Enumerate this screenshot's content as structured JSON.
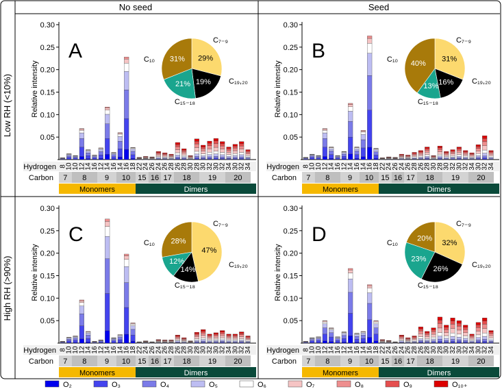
{
  "figure": {
    "col_headers": [
      "No seed",
      "Seed"
    ],
    "row_headers": [
      "Low RH (<10%)",
      "High RH (>90%)"
    ],
    "ylabel": "Relative intensity",
    "hydrogen_label": "Hydrogen",
    "carbon_label": "Carbon",
    "group_labels": [
      "Monomers",
      "Dimers"
    ],
    "legend": [
      "O₂",
      "O₃",
      "O₄",
      "O₅",
      "O₆",
      "O₇",
      "O₈",
      "O₉",
      "O₁₀₊"
    ],
    "legend_colors": [
      "#0000ee",
      "#4444ee",
      "#7b7be8",
      "#bdbdf2",
      "#ffffff",
      "#f6c4c4",
      "#ee8e8e",
      "#e54e4e",
      "#dd0000"
    ],
    "pie_labels": [
      "C₇₋₉",
      "C₁₉,₂₀",
      "C₁₅₋₁₈",
      "C₁₀"
    ],
    "pie_colors": [
      "#fcd96e",
      "#000000",
      "#1aa58e",
      "#a87a0a"
    ],
    "monomer_color": "#f5b800",
    "dimer_color": "#0a4a3a"
  },
  "chart_data": [
    {
      "panel": "A",
      "type": "bar",
      "stacked": true,
      "ylim": [
        0,
        0.3
      ],
      "yticks": [
        "0.05",
        "0.10",
        "0.15",
        "0.20",
        "0.25",
        "0.30"
      ],
      "hydrogen": [
        "8",
        "10",
        "10",
        "12",
        "14",
        "16",
        "12",
        "14",
        "16",
        "14",
        "16",
        "18",
        "22",
        "24",
        "26",
        "24",
        "26",
        "28",
        "26",
        "28",
        "30",
        "28",
        "30",
        "32",
        "30",
        "32",
        "34",
        "30",
        "32",
        "34"
      ],
      "carbon": [
        "7",
        "8",
        "9",
        "10",
        "15",
        "16",
        "17",
        "18",
        "19",
        "20"
      ],
      "totals": [
        0.004,
        0.013,
        0.009,
        0.069,
        0.022,
        0.01,
        0.026,
        0.117,
        0.016,
        0.06,
        0.228,
        0.027,
        0.005,
        0.007,
        0.006,
        0.018,
        0.015,
        0.012,
        0.038,
        0.024,
        0.009,
        0.046,
        0.032,
        0.041,
        0.047,
        0.04,
        0.028,
        0.034,
        0.04,
        0.022
      ],
      "pie": [
        29,
        19,
        21,
        31
      ]
    },
    {
      "panel": "B",
      "type": "bar",
      "stacked": true,
      "ylim": [
        0,
        0.3
      ],
      "yticks": [
        "0.05",
        "0.10",
        "0.15",
        "0.20",
        "0.25",
        "0.30"
      ],
      "hydrogen": [
        "8",
        "10",
        "10",
        "12",
        "14",
        "16",
        "12",
        "14",
        "16",
        "14",
        "16",
        "18",
        "22",
        "24",
        "26",
        "24",
        "26",
        "28",
        "26",
        "28",
        "30",
        "28",
        "30",
        "32",
        "30",
        "32",
        "34",
        "30",
        "32",
        "34"
      ],
      "carbon": [
        "7",
        "8",
        "9",
        "10",
        "15",
        "16",
        "17",
        "18",
        "19",
        "20"
      ],
      "totals": [
        0.005,
        0.012,
        0.009,
        0.069,
        0.028,
        0.009,
        0.018,
        0.125,
        0.028,
        0.065,
        0.275,
        0.025,
        0.004,
        0.006,
        0.005,
        0.012,
        0.01,
        0.016,
        0.02,
        0.028,
        0.009,
        0.03,
        0.018,
        0.022,
        0.028,
        0.02,
        0.015,
        0.033,
        0.053,
        0.02
      ],
      "pie": [
        31,
        16,
        13,
        40
      ]
    },
    {
      "panel": "C",
      "type": "bar",
      "stacked": true,
      "ylim": [
        0,
        0.3
      ],
      "yticks": [
        "0.05",
        "0.10",
        "0.15",
        "0.20",
        "0.25",
        "0.30"
      ],
      "hydrogen": [
        "8",
        "10",
        "10",
        "12",
        "14",
        "16",
        "12",
        "14",
        "16",
        "14",
        "16",
        "18",
        "22",
        "24",
        "26",
        "24",
        "26",
        "28",
        "26",
        "28",
        "30",
        "28",
        "30",
        "32",
        "30",
        "32",
        "34",
        "30",
        "32",
        "34"
      ],
      "carbon": [
        "7",
        "8",
        "9",
        "10",
        "15",
        "16",
        "17",
        "18",
        "19",
        "20"
      ],
      "totals": [
        0.004,
        0.013,
        0.016,
        0.096,
        0.026,
        0.004,
        0.007,
        0.276,
        0.012,
        0.019,
        0.198,
        0.045,
        0.003,
        0.005,
        0.003,
        0.008,
        0.007,
        0.007,
        0.018,
        0.012,
        0.005,
        0.024,
        0.03,
        0.02,
        0.023,
        0.028,
        0.02,
        0.02,
        0.025,
        0.016
      ],
      "pie": [
        47,
        14,
        12,
        28
      ]
    },
    {
      "panel": "D",
      "type": "bar",
      "stacked": true,
      "ylim": [
        0,
        0.3
      ],
      "yticks": [
        "0.05",
        "0.10",
        "0.15",
        "0.20",
        "0.25",
        "0.30"
      ],
      "hydrogen": [
        "8",
        "10",
        "10",
        "12",
        "14",
        "16",
        "12",
        "14",
        "16",
        "14",
        "16",
        "18",
        "22",
        "24",
        "26",
        "24",
        "26",
        "28",
        "26",
        "28",
        "30",
        "28",
        "30",
        "32",
        "30",
        "32",
        "34",
        "30",
        "32",
        "34"
      ],
      "carbon": [
        "7",
        "8",
        "9",
        "10",
        "15",
        "16",
        "17",
        "18",
        "19",
        "20"
      ],
      "totals": [
        0.004,
        0.012,
        0.014,
        0.05,
        0.034,
        0.014,
        0.025,
        0.166,
        0.022,
        0.026,
        0.13,
        0.05,
        0.008,
        0.006,
        0.003,
        0.018,
        0.012,
        0.016,
        0.036,
        0.026,
        0.034,
        0.058,
        0.04,
        0.056,
        0.05,
        0.04,
        0.02,
        0.046,
        0.056,
        0.028
      ],
      "pie": [
        32,
        26,
        23,
        20
      ]
    }
  ]
}
